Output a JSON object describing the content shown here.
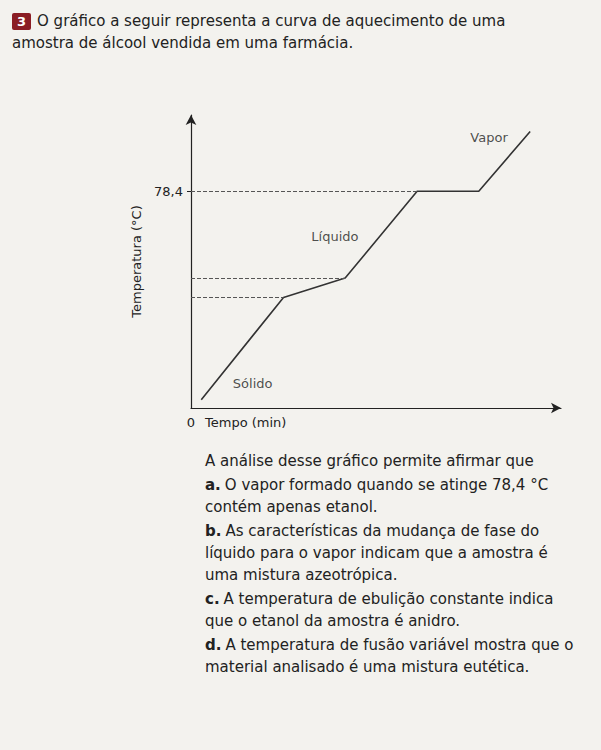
{
  "question": {
    "number": "3",
    "statement": "O gráfico a seguir representa a curva de aquecimento de uma amostra de álcool vendida em uma farmácia.",
    "prompt": "A análise desse gráfico permite afirmar que",
    "options": [
      {
        "letter": "a.",
        "text": "O vapor formado quando se atinge 78,4 °C contém apenas etanol."
      },
      {
        "letter": "b.",
        "text": "As características da mudança de fase do líquido para o vapor indicam que a amostra é uma mistura azeotrópica."
      },
      {
        "letter": "c.",
        "text": "A temperatura de ebulição constante indica que o etanol da amostra é anidro."
      },
      {
        "letter": "d.",
        "text": "A temperatura de fusão variável mostra que o material analisado é uma mistura eutética."
      }
    ]
  },
  "chart_data": {
    "type": "line",
    "x_label": "Tempo (min)",
    "y_label": "Temperatura (°C)",
    "x": [
      1,
      9,
      15,
      22,
      28,
      33
    ],
    "values": [
      3,
      40,
      47,
      78.4,
      78.4,
      100
    ],
    "color": "#333333",
    "xlim": [
      0,
      36
    ],
    "ylim": [
      0,
      106
    ],
    "xticks": [
      0
    ],
    "yticks": [
      {
        "value": 78.4,
        "label": "78,4"
      }
    ],
    "guides": [
      {
        "x": 9,
        "y": 40
      },
      {
        "x": 15,
        "y": 47
      },
      {
        "x": 22,
        "y": 78.4
      }
    ],
    "annotations": [
      {
        "text": "Sólido",
        "x": 6,
        "y": 9
      },
      {
        "text": "Líquido",
        "x": 14,
        "y": 62
      },
      {
        "text": "Vapor",
        "x": 29,
        "y": 98
      }
    ],
    "grid": false
  }
}
